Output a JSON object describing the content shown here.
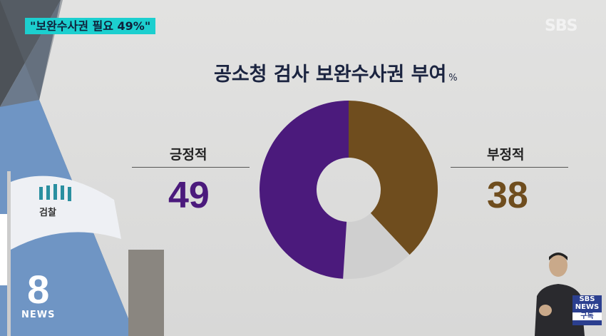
{
  "caption": "\"보완수사권 필요 49%\"",
  "broadcaster_logo": "SBS",
  "program_logo": {
    "number": "8",
    "label": "NEWS"
  },
  "subscribe_badge": {
    "brand": "SBS",
    "sub": "NEWS",
    "action": "구독"
  },
  "colors": {
    "positive": "#4b1a7c",
    "negative": "#6f4d1e",
    "other": "#cfcfcf",
    "caption_bg": "#1ccfcf",
    "title": "#1b2440"
  },
  "chart_data": {
    "type": "pie",
    "donut": true,
    "title": "공소청 검사 보완수사권 부여",
    "unit": "%",
    "slices": [
      {
        "name": "부정적",
        "value": 38,
        "color": "#6f4d1e"
      },
      {
        "name": "",
        "value": 13,
        "color": "#cfcfcf"
      },
      {
        "name": "긍정적",
        "value": 49,
        "color": "#4b1a7c"
      }
    ],
    "labels": {
      "positive": {
        "text": "긍정적",
        "value": "49"
      },
      "negative": {
        "text": "부정적",
        "value": "38"
      }
    }
  }
}
